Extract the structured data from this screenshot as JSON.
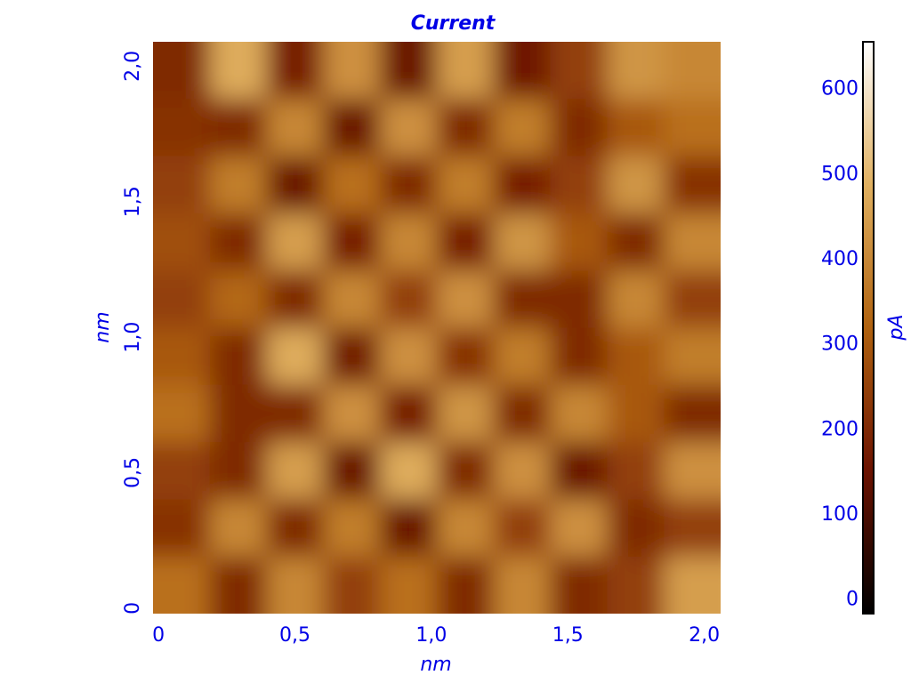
{
  "chart_data": {
    "type": "heatmap",
    "title": "Current",
    "x_label": "nm",
    "y_label": "nm",
    "colorbar_label": "pA",
    "xlim": [
      -0.02,
      2.06
    ],
    "ylim": [
      -0.02,
      2.09
    ],
    "xticks": [
      0,
      {
        "value": 0.5,
        "label": "0,5"
      },
      {
        "value": 1.0,
        "label": "1,0"
      },
      {
        "value": 1.5,
        "label": "1,5"
      },
      {
        "value": 2.0,
        "label": "2,0"
      }
    ],
    "yticks": [
      0,
      {
        "value": 0.5,
        "label": "0,5"
      },
      {
        "value": 1.0,
        "label": "1,0"
      },
      {
        "value": 1.5,
        "label": "1,5"
      },
      {
        "value": 2.0,
        "label": "2,0"
      }
    ],
    "zlim": [
      -16,
      656
    ],
    "zticks": [
      0,
      100,
      200,
      300,
      400,
      500,
      600
    ],
    "colormap": [
      "#000000",
      "#6b1200",
      "#b0620f",
      "#e0b060",
      "#ffffff"
    ],
    "z": [
      [
        200,
        480,
        180,
        420,
        150,
        450,
        160,
        250,
        430,
        400
      ],
      [
        220,
        200,
        400,
        150,
        420,
        200,
        380,
        200,
        300,
        350
      ],
      [
        250,
        380,
        150,
        350,
        200,
        380,
        180,
        250,
        430,
        220
      ],
      [
        280,
        200,
        450,
        180,
        400,
        180,
        430,
        300,
        200,
        400
      ],
      [
        250,
        330,
        200,
        400,
        250,
        420,
        200,
        200,
        400,
        250
      ],
      [
        300,
        200,
        480,
        170,
        420,
        220,
        380,
        200,
        300,
        380
      ],
      [
        350,
        200,
        200,
        420,
        180,
        430,
        200,
        400,
        300,
        200
      ],
      [
        250,
        200,
        450,
        150,
        480,
        200,
        420,
        150,
        250,
        420
      ],
      [
        220,
        400,
        200,
        380,
        150,
        400,
        250,
        420,
        200,
        250
      ],
      [
        350,
        200,
        400,
        250,
        350,
        200,
        400,
        200,
        250,
        450
      ]
    ]
  }
}
